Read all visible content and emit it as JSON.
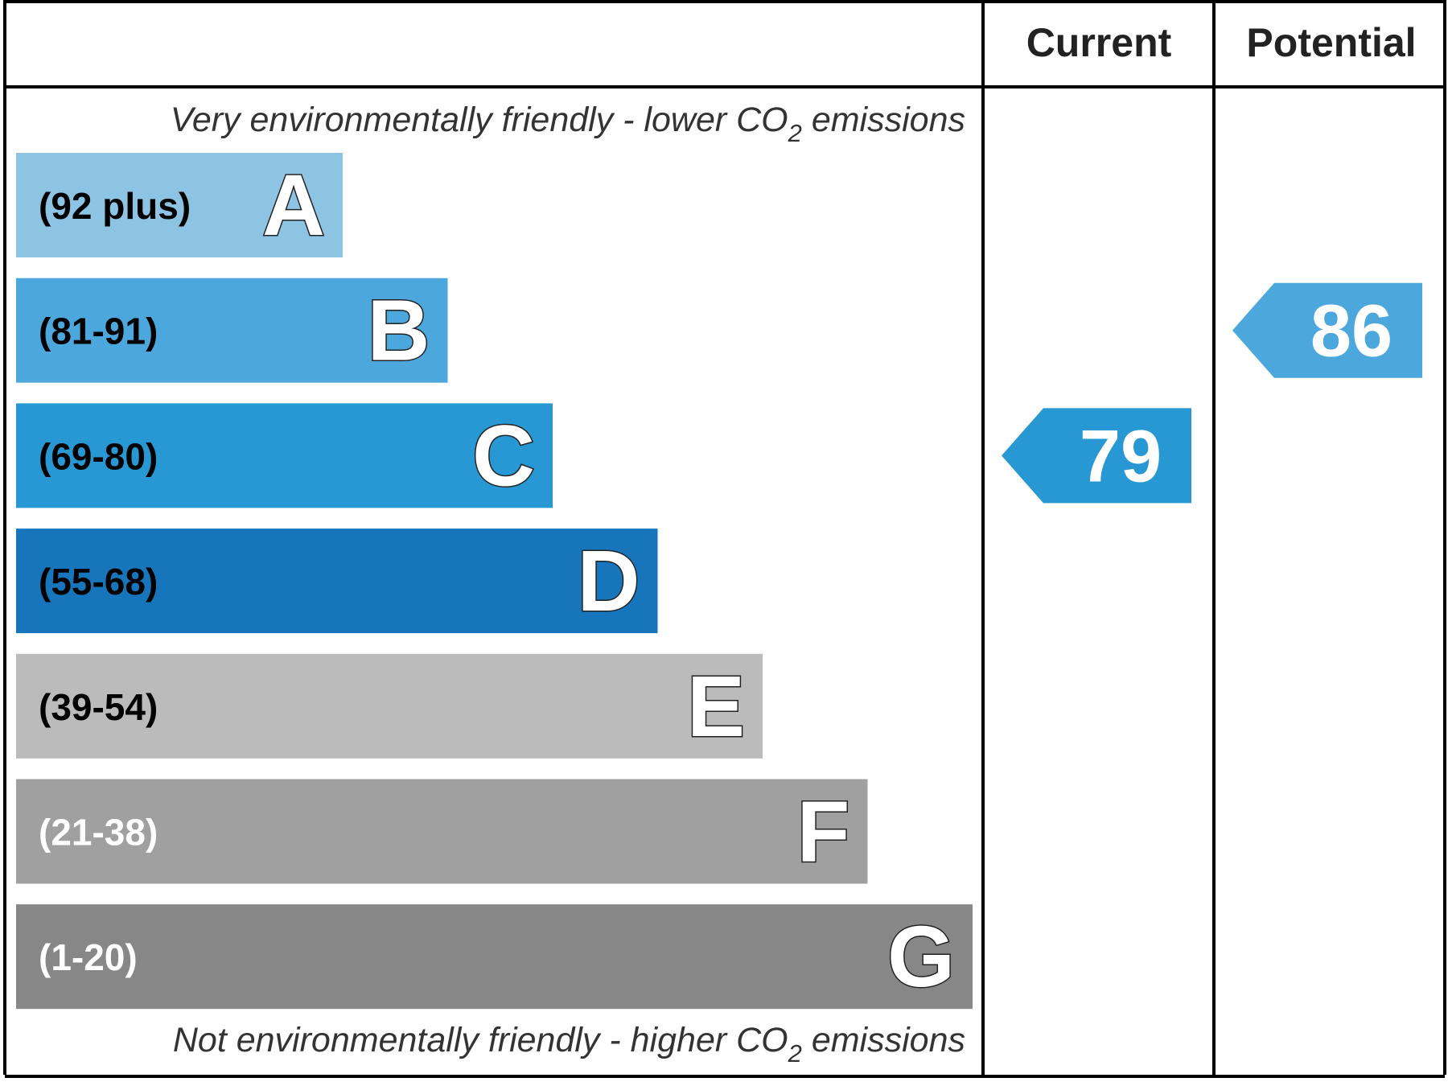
{
  "header": {
    "current_label": "Current",
    "potential_label": "Potential"
  },
  "captions": {
    "top": {
      "before": "Very environmentally friendly - lower CO",
      "sub": "2",
      "after": " emissions"
    },
    "bottom": {
      "before": "Not environmentally friendly - higher CO",
      "sub": "2",
      "after": " emissions"
    }
  },
  "chart_data": {
    "type": "bar",
    "title": "",
    "bands": [
      {
        "letter": "A",
        "range": "(92 plus)",
        "color": "#8DC4E4",
        "range_text_color": "#000000"
      },
      {
        "letter": "B",
        "range": "(81-91)",
        "color": "#4CA8DC",
        "range_text_color": "#000000"
      },
      {
        "letter": "C",
        "range": "(69-80)",
        "color": "#2798D3",
        "range_text_color": "#000000"
      },
      {
        "letter": "D",
        "range": "(55-68)",
        "color": "#1776BB",
        "range_text_color": "#000000"
      },
      {
        "letter": "E",
        "range": "(39-54)",
        "color": "#BBBBBB",
        "range_text_color": "#000000"
      },
      {
        "letter": "F",
        "range": "(21-38)",
        "color": "#A0A0A0",
        "range_text_color": "#FFFFFF"
      },
      {
        "letter": "G",
        "range": "(1-20)",
        "color": "#878787",
        "range_text_color": "#FFFFFF"
      }
    ],
    "ratings": {
      "current": {
        "value": 79,
        "band": "C",
        "color": "#2798D3"
      },
      "potential": {
        "value": 86,
        "band": "B",
        "color": "#4CA8DC"
      }
    }
  }
}
